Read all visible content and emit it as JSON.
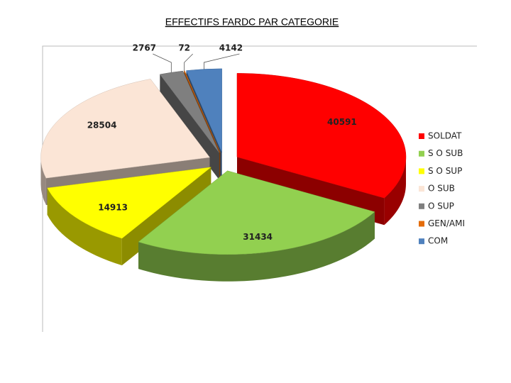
{
  "chart_data": {
    "type": "pie",
    "title": "EFFECTIFS FARDC PAR CATEGORIE",
    "categories": [
      "SOLDAT",
      "S O SUB",
      "S O SUP",
      "O SUB",
      "O SUP",
      "GEN/AMI",
      "COM"
    ],
    "values": [
      40591,
      31434,
      14913,
      28504,
      2767,
      72,
      4142
    ],
    "colors": [
      "#ff0000",
      "#92d050",
      "#ffff00",
      "#fbe5d6",
      "#7f7f7f",
      "#e46c0a",
      "#4f81bd"
    ],
    "legend": "right"
  }
}
